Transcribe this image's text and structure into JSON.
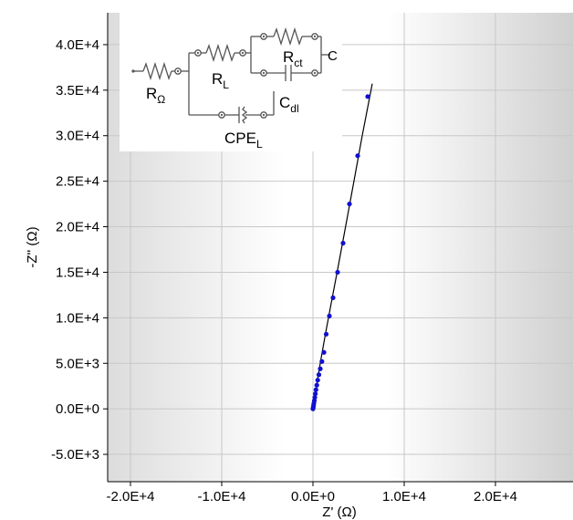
{
  "chart_data": {
    "type": "scatter",
    "title": "",
    "xlabel": "Z' (Ω)",
    "ylabel": "-Z'' (Ω)",
    "xlim": [
      -22500,
      28500
    ],
    "ylim": [
      -8000,
      43500
    ],
    "grid": true,
    "x_ticks": [
      {
        "value": -20000,
        "label": "-2.0E+4"
      },
      {
        "value": -10000,
        "label": "-1.0E+4"
      },
      {
        "value": 0,
        "label": "0.0E+0"
      },
      {
        "value": 10000,
        "label": "1.0E+4"
      },
      {
        "value": 20000,
        "label": "2.0E+4"
      }
    ],
    "y_ticks": [
      {
        "value": -5000,
        "label": "-5.0E+3"
      },
      {
        "value": 0,
        "label": "0.0E+0"
      },
      {
        "value": 5000,
        "label": "5.0E+3"
      },
      {
        "value": 10000,
        "label": "1.0E+4"
      },
      {
        "value": 15000,
        "label": "1.5E+4"
      },
      {
        "value": 20000,
        "label": "2.0E+4"
      },
      {
        "value": 25000,
        "label": "2.5E+4"
      },
      {
        "value": 30000,
        "label": "3.0E+4"
      },
      {
        "value": 35000,
        "label": "3.5E+4"
      },
      {
        "value": 40000,
        "label": "4.0E+4"
      }
    ],
    "series": [
      {
        "kind": "measured",
        "color": "#1010d0",
        "x": [
          0,
          30,
          60,
          100,
          150,
          200,
          260,
          330,
          420,
          520,
          650,
          800,
          980,
          1200,
          1450,
          1800,
          2200,
          2700,
          3300,
          4000,
          4900,
          6000
        ],
        "y": [
          0,
          150,
          350,
          600,
          900,
          1250,
          1650,
          2100,
          2600,
          3150,
          3750,
          4400,
          5200,
          6200,
          8200,
          10200,
          12200,
          15000,
          18200,
          22500,
          27800,
          34300
        ]
      },
      {
        "kind": "fit",
        "color": "#000000",
        "x": [
          0,
          200,
          500,
          900,
          1400,
          2000,
          2700,
          3500,
          4400,
          5400,
          6500
        ],
        "y": [
          0,
          1300,
          3200,
          5600,
          8400,
          11600,
          15300,
          19600,
          24500,
          30000,
          35700
        ]
      }
    ]
  },
  "circuit": {
    "components": {
      "r_omega": {
        "letter": "R",
        "sub": "Ω"
      },
      "r_l": {
        "letter": "R",
        "sub": "L"
      },
      "r_ct": {
        "letter": "R",
        "sub": "ct"
      },
      "c_dl": {
        "letter": "C",
        "sub": "dl"
      },
      "cpe_l": {
        "letter": "CPE",
        "sub": "L"
      }
    },
    "terminal": "C"
  }
}
